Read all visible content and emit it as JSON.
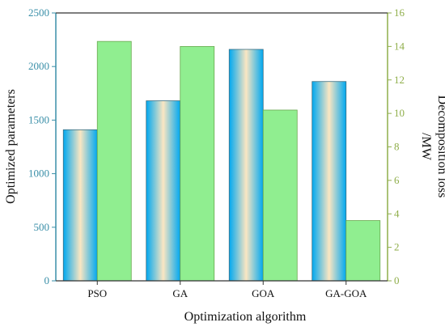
{
  "chart_data": {
    "type": "bar",
    "categories": [
      "PSO",
      "GA",
      "GOA",
      "GA-GOA"
    ],
    "series": [
      {
        "axis": "left",
        "values": [
          1410,
          1680,
          2160,
          1860
        ]
      },
      {
        "axis": "right",
        "values": [
          14.3,
          14.0,
          10.2,
          3.6
        ]
      }
    ],
    "xlabel": "Optimization algorithm",
    "ylabel_left": "Optimized parameters",
    "ylabel_right_line1": "Decomposition loss",
    "ylabel_right_line2": "/MW",
    "ylim_left": [
      0,
      2500
    ],
    "ylim_right": [
      0,
      16
    ],
    "yticks_left": [
      0,
      500,
      1000,
      1500,
      2000,
      2500
    ],
    "yticks_right": [
      0,
      2,
      4,
      6,
      8,
      10,
      12,
      14,
      16
    ],
    "grid": false,
    "colors": {
      "left_axis": "#3a8fa8",
      "right_axis": "#8fae4a",
      "bar1_edge": "#00a8f0",
      "bar1_center": "#fbe6c2",
      "bar2_fill": "#90ee90",
      "bar2_edge": "#6aa84f"
    }
  }
}
